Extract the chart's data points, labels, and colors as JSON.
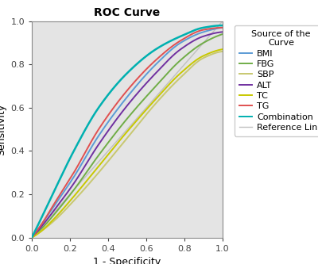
{
  "title": "ROC Curve",
  "xlabel": "1 - Specificity",
  "ylabel": "Sensitivity",
  "xlim": [
    0.0,
    1.0
  ],
  "ylim": [
    0.0,
    1.0
  ],
  "xticks": [
    0.0,
    0.2,
    0.4,
    0.6,
    0.8,
    1.0
  ],
  "yticks": [
    0.0,
    0.2,
    0.4,
    0.6,
    0.8,
    1.0
  ],
  "background_color": "#e4e4e4",
  "legend_title": "Source of the\nCurve",
  "curves": [
    {
      "label": "BMI",
      "color": "#5b9bd5",
      "pts_y": [
        0.0,
        0.06,
        0.15,
        0.28,
        0.47,
        0.65,
        0.8,
        0.9,
        0.95,
        0.97
      ]
    },
    {
      "label": "FBG",
      "color": "#70ad47",
      "pts_y": [
        0.0,
        0.04,
        0.11,
        0.22,
        0.38,
        0.55,
        0.7,
        0.82,
        0.9,
        0.94
      ]
    },
    {
      "label": "SBP",
      "color": "#c8c870",
      "pts_y": [
        0.0,
        0.03,
        0.08,
        0.17,
        0.3,
        0.46,
        0.62,
        0.74,
        0.83,
        0.86
      ]
    },
    {
      "label": "ALT",
      "color": "#7030a0",
      "pts_y": [
        0.0,
        0.05,
        0.13,
        0.25,
        0.43,
        0.61,
        0.76,
        0.87,
        0.93,
        0.95
      ]
    },
    {
      "label": "TC",
      "color": "#c8c800",
      "pts_y": [
        0.0,
        0.03,
        0.09,
        0.19,
        0.33,
        0.49,
        0.64,
        0.76,
        0.84,
        0.87
      ]
    },
    {
      "label": "TG",
      "color": "#e05050",
      "pts_y": [
        0.0,
        0.06,
        0.16,
        0.3,
        0.5,
        0.68,
        0.82,
        0.91,
        0.96,
        0.97
      ]
    },
    {
      "label": "Combination",
      "color": "#00b0b0",
      "pts_y": [
        0.0,
        0.09,
        0.22,
        0.4,
        0.6,
        0.76,
        0.87,
        0.93,
        0.97,
        0.98
      ]
    }
  ],
  "pts_x": [
    0.0,
    0.05,
    0.12,
    0.22,
    0.35,
    0.5,
    0.65,
    0.78,
    0.9,
    1.0
  ],
  "ref_line_color": "#c0c0c0",
  "title_fontsize": 10,
  "label_fontsize": 9,
  "tick_fontsize": 8,
  "legend_fontsize": 8,
  "legend_title_fontsize": 8
}
